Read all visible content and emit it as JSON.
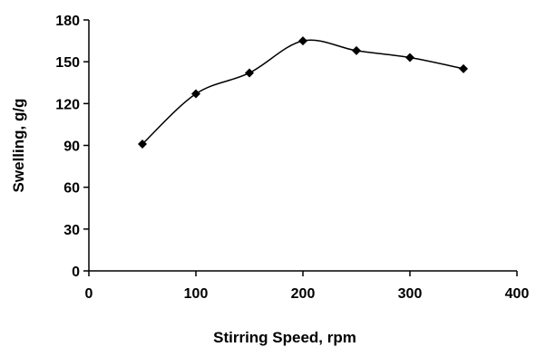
{
  "chart_data": {
    "type": "line",
    "title": "",
    "xlabel": "Stirring Speed, rpm",
    "ylabel": "Swelling, g/g",
    "xlim": [
      0,
      400
    ],
    "ylim": [
      0,
      180
    ],
    "x_ticks": [
      "0",
      "100",
      "200",
      "300",
      "400"
    ],
    "y_ticks": [
      "0",
      "30",
      "60",
      "90",
      "120",
      "150",
      "180"
    ],
    "grid": false,
    "legend": "none",
    "marker": "diamond",
    "line_style": "smooth",
    "series": [
      {
        "x": [
          50,
          100,
          150,
          200,
          250,
          300,
          350
        ],
        "values": [
          91,
          127,
          142,
          165,
          158,
          153,
          145
        ]
      }
    ],
    "colors": {
      "line": "#000000",
      "marker": "#000000",
      "axis": "#000000",
      "background": "#ffffff"
    }
  }
}
